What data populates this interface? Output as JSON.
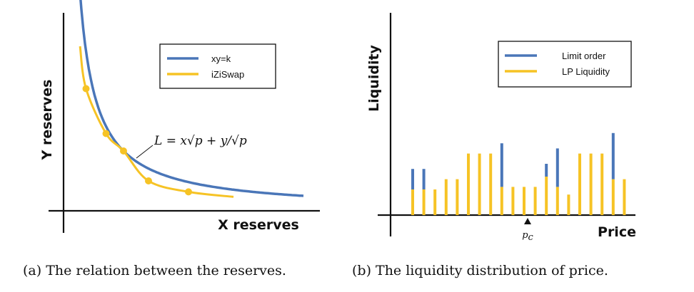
{
  "colors": {
    "blue": "#4a76b8",
    "yellow": "#f6c325",
    "axis": "#111111"
  },
  "chart_data": [
    {
      "type": "line",
      "xlabel": "X reserves",
      "ylabel": "Y reserves",
      "legend": {
        "placement": "top-right",
        "entries": [
          "xy=k",
          "iZiSwap"
        ]
      },
      "series": [
        {
          "name": "xy=k",
          "color": "#4a76b8",
          "k": 1.44,
          "x": [
            0.28,
            4.8
          ]
        },
        {
          "name": "iZiSwap",
          "color": "#f6c325",
          "points": [
            {
              "x": 0.33,
              "y": 3.3
            },
            {
              "x": 0.45,
              "y": 2.45
            },
            {
              "x": 0.85,
              "y": 1.55
            },
            {
              "x": 1.2,
              "y": 1.2
            },
            {
              "x": 1.7,
              "y": 0.6
            },
            {
              "x": 2.5,
              "y": 0.38
            },
            {
              "x": 3.4,
              "y": 0.28
            }
          ],
          "markers": [
            {
              "x": 0.45,
              "y": 2.45
            },
            {
              "x": 0.85,
              "y": 1.55
            },
            {
              "x": 1.2,
              "y": 1.2
            },
            {
              "x": 1.7,
              "y": 0.6
            },
            {
              "x": 2.5,
              "y": 0.38
            }
          ]
        }
      ],
      "annotation": "L = x√p + y/√p",
      "grid": false,
      "caption": "(a)  The relation between the reserves."
    },
    {
      "type": "bar",
      "xlabel": "Price",
      "ylabel": "Liquidity",
      "stacked": true,
      "legend": {
        "placement": "top-right",
        "entries": [
          "Limit order",
          "LP Liquidity"
        ]
      },
      "tick_label": "p",
      "tick_label_sub": "c",
      "tick_position": 11.5,
      "series": [
        {
          "name": "LP Liquidity",
          "color": "#f6c325",
          "values": [
            1.0,
            1.0,
            1.0,
            1.4,
            1.4,
            2.4,
            2.4,
            2.4,
            1.1,
            1.1,
            1.1,
            1.1,
            1.5,
            1.1,
            0.8,
            2.4,
            2.4,
            2.4,
            1.4,
            1.4
          ]
        },
        {
          "name": "Limit order",
          "color": "#4a76b8",
          "values": [
            0.8,
            0.8,
            0,
            0,
            0,
            0,
            0,
            0,
            1.7,
            0,
            0,
            0,
            0.5,
            1.5,
            0,
            0,
            0,
            0,
            1.8,
            0
          ]
        }
      ],
      "ylim": [
        0,
        3.5
      ],
      "grid": false,
      "caption": "(b)  The liquidity distribution of price."
    }
  ]
}
